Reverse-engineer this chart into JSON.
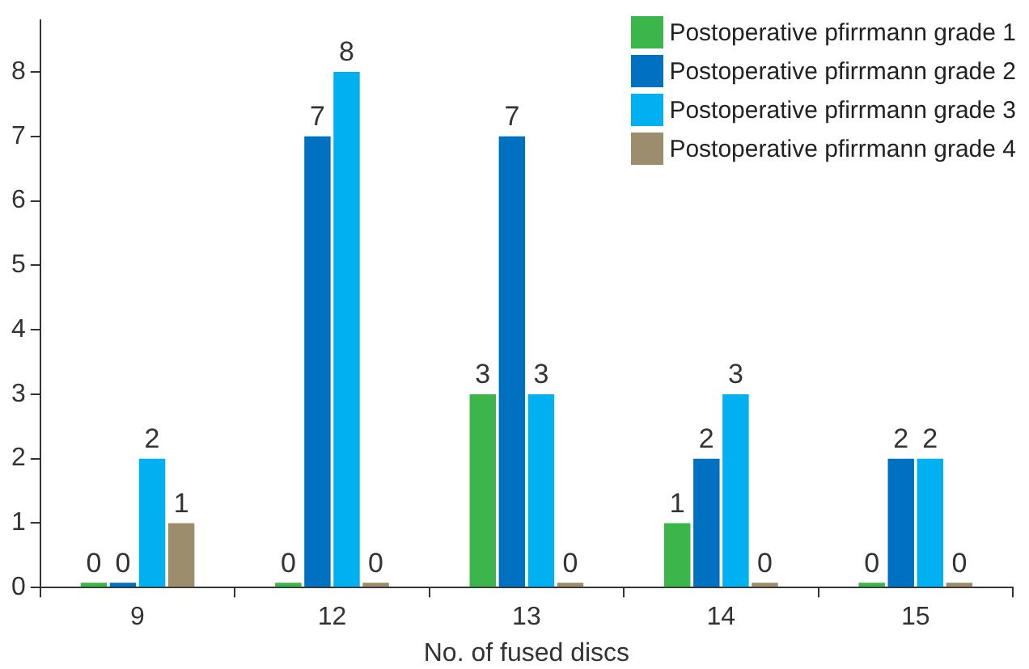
{
  "chart_data": {
    "type": "bar",
    "xlabel": "No. of fused discs",
    "categories": [
      "9",
      "12",
      "13",
      "14",
      "15"
    ],
    "series": [
      {
        "name": "Postoperative pfirrmann grade 1",
        "color": "#3cb54a",
        "values": [
          0,
          0,
          3,
          1,
          0
        ]
      },
      {
        "name": "Postoperative pfirrmann grade 2",
        "color": "#0071c1",
        "values": [
          0,
          7,
          7,
          2,
          2
        ]
      },
      {
        "name": "Postoperative pfirrmann grade 3",
        "color": "#00b0f0",
        "values": [
          2,
          8,
          3,
          3,
          2
        ]
      },
      {
        "name": "Postoperative pfirrmann grade 4",
        "color": "#9c8d6c",
        "values": [
          1,
          0,
          0,
          0,
          0
        ]
      }
    ],
    "ylim": [
      0,
      8.8
    ],
    "yticks": [
      0,
      1,
      2,
      3,
      4,
      5,
      6,
      7,
      8
    ],
    "grid": false,
    "legend": "top right",
    "data_labels": true
  }
}
